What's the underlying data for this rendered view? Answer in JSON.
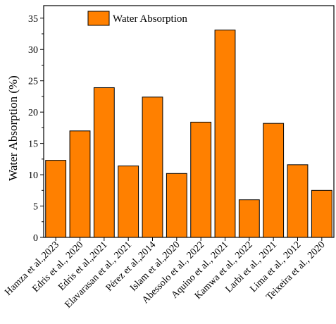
{
  "chart_data": {
    "type": "bar",
    "title": "",
    "xlabel": "",
    "ylabel": "Water Absorption (%)",
    "ylim": [
      0,
      37
    ],
    "yticks": [
      0,
      5,
      10,
      15,
      20,
      25,
      30,
      35
    ],
    "grid": false,
    "legend_position": "top-left",
    "categories": [
      "Hamza et al.,2023",
      "Edris et al., 2020",
      "Edris et al.,2021",
      "Elavarasan et al., 2021",
      "Pérez et al.,2014",
      "Islam et al.,2020",
      "Abessolo et al., 2022",
      "Aquino et al., 2021",
      "Kamwa et al., 2022",
      "Larbi et al., 2021",
      "Lima et al., 2012",
      "Teixeira et al., 2020"
    ],
    "series": [
      {
        "name": "Water Absorption",
        "color": "#ff8000",
        "values": [
          12.3,
          17.0,
          23.9,
          11.4,
          22.4,
          10.2,
          18.4,
          33.1,
          6.0,
          18.2,
          11.6,
          7.5
        ]
      }
    ]
  }
}
